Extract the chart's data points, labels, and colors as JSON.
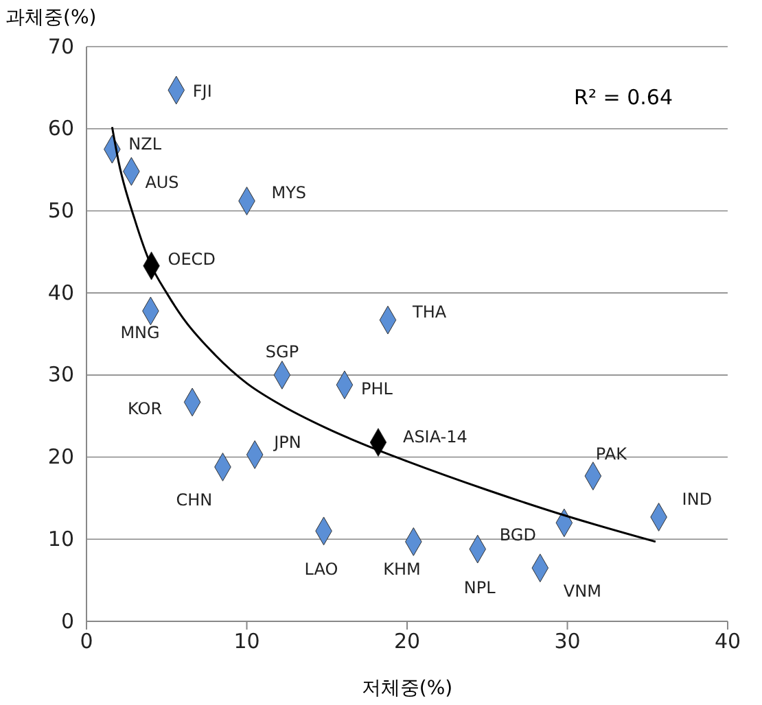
{
  "chart_data": {
    "type": "scatter",
    "xlabel": "저체중(%)",
    "ylabel": "과체중(%)",
    "xlim": [
      0,
      40
    ],
    "xticks": [
      0,
      10,
      20,
      30,
      40
    ],
    "ylim": [
      0,
      70
    ],
    "yticks": [
      0,
      10,
      20,
      30,
      40,
      50,
      60,
      70
    ],
    "grid": "y",
    "series": [
      {
        "marker": "diamond",
        "x": [
          5.6,
          1.6,
          2.8,
          10.0,
          4.05,
          4.0,
          18.8,
          12.2,
          16.1,
          6.6,
          18.2,
          10.5,
          8.5,
          31.6,
          35.7,
          14.8,
          20.4,
          29.8,
          24.4,
          28.3
        ],
        "values": [
          64.7,
          57.5,
          54.8,
          51.2,
          43.3,
          37.8,
          36.7,
          30.0,
          28.8,
          26.7,
          21.8,
          20.3,
          18.8,
          17.7,
          12.7,
          11.0,
          9.7,
          12.0,
          8.8,
          6.5
        ],
        "colors": [
          "#5b8fd6",
          "#5b8fd6",
          "#5b8fd6",
          "#5b8fd6",
          "#000000",
          "#5b8fd6",
          "#5b8fd6",
          "#5b8fd6",
          "#5b8fd6",
          "#5b8fd6",
          "#000000",
          "#5b8fd6",
          "#5b8fd6",
          "#5b8fd6",
          "#5b8fd6",
          "#5b8fd6",
          "#5b8fd6",
          "#5b8fd6",
          "#5b8fd6",
          "#5b8fd6"
        ]
      },
      {
        "type": "line",
        "marker": "none",
        "color": "#000000",
        "x": [
          1.6,
          2,
          3,
          4,
          5,
          6,
          8,
          10,
          12,
          15,
          18,
          20,
          25,
          30,
          35.5
        ],
        "values": [
          60.2,
          56,
          49,
          43.5,
          40,
          37,
          32.5,
          29,
          26.5,
          23.5,
          21,
          19.5,
          16,
          12.8,
          9.7
        ]
      }
    ],
    "annotations": [
      {
        "text": "FJI",
        "x": 5.6,
        "y": 64.7
      },
      {
        "text": "NZL",
        "x": 1.6,
        "y": 57.5
      },
      {
        "text": "AUS",
        "x": 2.8,
        "y": 54.8
      },
      {
        "text": "MYS",
        "x": 10.0,
        "y": 51.2
      },
      {
        "text": "OECD",
        "x": 4.05,
        "y": 43.3
      },
      {
        "text": "MNG",
        "x": 4.0,
        "y": 37.8
      },
      {
        "text": "THA",
        "x": 18.8,
        "y": 36.7
      },
      {
        "text": "SGP",
        "x": 12.2,
        "y": 30.0
      },
      {
        "text": "PHL",
        "x": 16.1,
        "y": 28.8
      },
      {
        "text": "KOR",
        "x": 6.6,
        "y": 26.7
      },
      {
        "text": "ASIA-14",
        "x": 18.2,
        "y": 21.8
      },
      {
        "text": "JPN",
        "x": 10.5,
        "y": 20.3
      },
      {
        "text": "CHN",
        "x": 8.5,
        "y": 18.8
      },
      {
        "text": "PAK",
        "x": 31.6,
        "y": 17.7
      },
      {
        "text": "IND",
        "x": 35.7,
        "y": 12.7
      },
      {
        "text": "LAO",
        "x": 14.8,
        "y": 11.0
      },
      {
        "text": "KHM",
        "x": 20.4,
        "y": 9.7
      },
      {
        "text": "BGD",
        "x": 29.8,
        "y": 12.0
      },
      {
        "text": "NPL",
        "x": 24.4,
        "y": 8.8
      },
      {
        "text": "VNM",
        "x": 28.3,
        "y": 6.5
      },
      "R² = 0.64"
    ]
  }
}
